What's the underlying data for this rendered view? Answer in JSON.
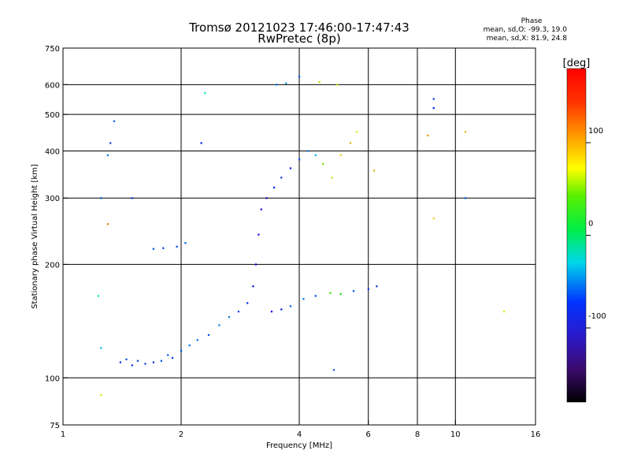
{
  "chart_data": {
    "type": "scatter",
    "title": "Tromsø 20121023 17:46:00-17:47:43",
    "subtitle": "RwPretec (8p)",
    "xlabel": "Frequency [MHz]",
    "ylabel": "Stationary phase Virtual Height [km]",
    "x_scale": "log",
    "y_scale": "log",
    "xlim": [
      1,
      16
    ],
    "ylim": [
      75,
      750
    ],
    "grid": true,
    "x_ticks": [
      1,
      2,
      4,
      6,
      8,
      10,
      16
    ],
    "x_tick_labels": [
      "1",
      "2",
      "4",
      "6",
      "8",
      "10",
      "16"
    ],
    "x_grid": [
      2,
      4,
      6,
      8,
      10
    ],
    "y_ticks": [
      75,
      100,
      200,
      300,
      400,
      500,
      600,
      750
    ],
    "y_tick_labels": [
      "75",
      "100",
      "200",
      "300",
      "400",
      "500",
      "600",
      "750"
    ],
    "y_grid": [
      100,
      200,
      300,
      400,
      500,
      600
    ],
    "phase_stats": {
      "heading": "Phase",
      "line_o": "mean, sd,O: -99.3, 19.0",
      "line_x": "mean, sd,X:  81.9, 24.8"
    },
    "colorbar": {
      "label": "[deg]",
      "range": [
        -180,
        180
      ],
      "ticks": [
        100,
        0,
        -100
      ],
      "tick_labels": [
        "100",
        "0",
        "-100"
      ],
      "colormap": "rainbow (black-purple-blue-cyan-green-yellow-orange-red)"
    },
    "points": [
      {
        "f": 1.4,
        "h": 110,
        "p": -110
      },
      {
        "f": 1.45,
        "h": 112,
        "p": -100
      },
      {
        "f": 1.5,
        "h": 108,
        "p": -115
      },
      {
        "f": 1.55,
        "h": 111,
        "p": -105
      },
      {
        "f": 1.62,
        "h": 109,
        "p": -108
      },
      {
        "f": 1.7,
        "h": 110,
        "p": -112
      },
      {
        "f": 1.78,
        "h": 111,
        "p": -102
      },
      {
        "f": 1.85,
        "h": 115,
        "p": -98
      },
      {
        "f": 1.9,
        "h": 113,
        "p": -110
      },
      {
        "f": 2.0,
        "h": 118,
        "p": -100
      },
      {
        "f": 2.1,
        "h": 122,
        "p": -90
      },
      {
        "f": 2.2,
        "h": 126,
        "p": -95
      },
      {
        "f": 2.35,
        "h": 130,
        "p": -100
      },
      {
        "f": 2.5,
        "h": 138,
        "p": -85
      },
      {
        "f": 2.65,
        "h": 145,
        "p": -90
      },
      {
        "f": 2.8,
        "h": 150,
        "p": -105
      },
      {
        "f": 2.95,
        "h": 158,
        "p": -115
      },
      {
        "f": 3.05,
        "h": 175,
        "p": -125
      },
      {
        "f": 3.1,
        "h": 200,
        "p": -130
      },
      {
        "f": 3.15,
        "h": 240,
        "p": -135
      },
      {
        "f": 3.2,
        "h": 280,
        "p": -140
      },
      {
        "f": 3.3,
        "h": 300,
        "p": -130
      },
      {
        "f": 3.45,
        "h": 320,
        "p": -120
      },
      {
        "f": 3.6,
        "h": 340,
        "p": -110
      },
      {
        "f": 3.8,
        "h": 360,
        "p": -120
      },
      {
        "f": 4.0,
        "h": 380,
        "p": -100
      },
      {
        "f": 4.2,
        "h": 400,
        "p": -90
      },
      {
        "f": 4.4,
        "h": 390,
        "p": -70
      },
      {
        "f": 4.6,
        "h": 370,
        "p": 60
      },
      {
        "f": 4.85,
        "h": 340,
        "p": 90
      },
      {
        "f": 5.1,
        "h": 390,
        "p": 110
      },
      {
        "f": 5.4,
        "h": 420,
        "p": 120
      },
      {
        "f": 5.6,
        "h": 450,
        "p": 100
      },
      {
        "f": 3.5,
        "h": 600,
        "p": -90
      },
      {
        "f": 3.7,
        "h": 605,
        "p": -80
      },
      {
        "f": 4.0,
        "h": 630,
        "p": -100
      },
      {
        "f": 4.5,
        "h": 610,
        "p": 80
      },
      {
        "f": 5.0,
        "h": 600,
        "p": 95
      },
      {
        "f": 3.4,
        "h": 150,
        "p": -130
      },
      {
        "f": 3.6,
        "h": 152,
        "p": -120
      },
      {
        "f": 3.8,
        "h": 155,
        "p": -100
      },
      {
        "f": 4.1,
        "h": 162,
        "p": -90
      },
      {
        "f": 4.4,
        "h": 165,
        "p": -110
      },
      {
        "f": 4.8,
        "h": 168,
        "p": 40
      },
      {
        "f": 5.1,
        "h": 167,
        "p": 30
      },
      {
        "f": 5.5,
        "h": 170,
        "p": -100
      },
      {
        "f": 6.0,
        "h": 172,
        "p": -110
      },
      {
        "f": 1.7,
        "h": 220,
        "p": -100
      },
      {
        "f": 1.8,
        "h": 221,
        "p": -110
      },
      {
        "f": 1.95,
        "h": 223,
        "p": -105
      },
      {
        "f": 2.05,
        "h": 228,
        "p": -95
      },
      {
        "f": 1.35,
        "h": 480,
        "p": -100
      },
      {
        "f": 1.32,
        "h": 420,
        "p": -110
      },
      {
        "f": 1.3,
        "h": 390,
        "p": -90
      },
      {
        "f": 1.25,
        "h": 300,
        "p": -100
      },
      {
        "f": 1.5,
        "h": 300,
        "p": -110
      },
      {
        "f": 2.25,
        "h": 420,
        "p": -120
      },
      {
        "f": 8.8,
        "h": 550,
        "p": -110
      },
      {
        "f": 8.8,
        "h": 520,
        "p": -120
      },
      {
        "f": 10.6,
        "h": 300,
        "p": -100
      },
      {
        "f": 10.6,
        "h": 450,
        "p": 120
      },
      {
        "f": 8.5,
        "h": 440,
        "p": 130
      },
      {
        "f": 8.8,
        "h": 265,
        "p": 110
      },
      {
        "f": 13.3,
        "h": 150,
        "p": 100
      },
      {
        "f": 1.25,
        "h": 90,
        "p": 100
      },
      {
        "f": 1.3,
        "h": 256,
        "p": 140
      },
      {
        "f": 1.23,
        "h": 165,
        "p": -40
      },
      {
        "f": 1.25,
        "h": 120,
        "p": -70
      },
      {
        "f": 2.3,
        "h": 570,
        "p": -40
      },
      {
        "f": 4.9,
        "h": 105,
        "p": -100
      },
      {
        "f": 6.3,
        "h": 175,
        "p": -110
      },
      {
        "f": 6.2,
        "h": 355,
        "p": 120
      }
    ]
  }
}
